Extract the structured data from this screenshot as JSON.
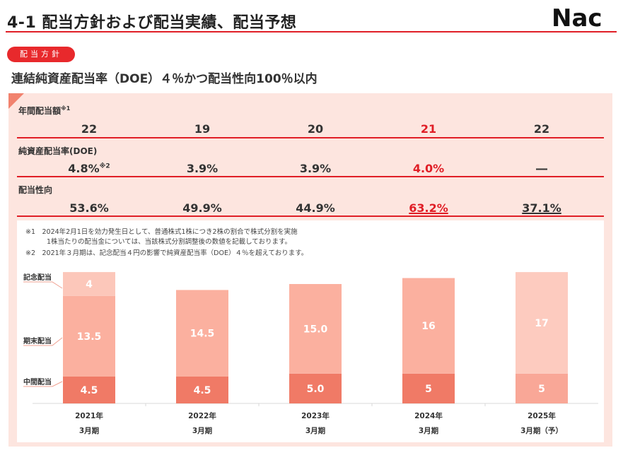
{
  "header": {
    "title": "4-1 配当方針および配当実績、配当予想",
    "logo_text": "Nac",
    "tag": "配当方針",
    "subtitle": "連結純資産配当率（DOE）４％かつ配当性向100％以内"
  },
  "table": {
    "annual_dividend": {
      "label": "年間配当額",
      "label_note": "※1",
      "values": [
        "22",
        "19",
        "20",
        "21",
        "22"
      ]
    },
    "doe": {
      "label": "純資産配当率(DOE)",
      "values": [
        "4.8%",
        "3.9%",
        "3.9%",
        "4.0%",
        "―"
      ],
      "first_note": "※2"
    },
    "payout": {
      "label": "配当性向",
      "values": [
        "53.6%",
        "49.9%",
        "44.9%",
        "63.2%",
        "37.1%"
      ]
    }
  },
  "notes": [
    "※1　2024年2月1日を効力発生日として、普通株式1株につき2株の割合で株式分割を実施",
    "1株当たりの配当金については、当該株式分割調整後の数値を記載しております。",
    "※2　2021年３月期は、記念配当４円の影響で純資産配当率（DOE）４％を超えております。"
  ],
  "legend_labels": {
    "commemorative": "記念配当",
    "year_end": "期末配当",
    "interim": "中間配当"
  },
  "colors": {
    "accent_red": "#e01e26",
    "interim": "#f07a66",
    "year_end": "#fbb09f",
    "commemorative": "#fcc7ba",
    "forecast_interim": "#f9a797",
    "forecast_year_end": "#fdcbbf",
    "panel": "#fde5df"
  },
  "chart_data": {
    "type": "bar",
    "stacked": true,
    "categories": [
      "2021年 3月期",
      "2022年 3月期",
      "2023年 3月期",
      "2024年 3月期",
      "2025年 3月期（予）"
    ],
    "category_lines": [
      [
        "2021年",
        "3月期"
      ],
      [
        "2022年",
        "3月期"
      ],
      [
        "2023年",
        "3月期"
      ],
      [
        "2024年",
        "3月期"
      ],
      [
        "2025年",
        "3月期（予）"
      ]
    ],
    "series": [
      {
        "name": "中間配当",
        "values": [
          4.5,
          4.5,
          5.0,
          5,
          5
        ],
        "labels": [
          "4.5",
          "4.5",
          "5.0",
          "5",
          "5"
        ]
      },
      {
        "name": "期末配当",
        "values": [
          13.5,
          14.5,
          15.0,
          16,
          17
        ],
        "labels": [
          "13.5",
          "14.5",
          "15.0",
          "16",
          "17"
        ]
      },
      {
        "name": "記念配当",
        "values": [
          4,
          0,
          0,
          0,
          0
        ],
        "labels": [
          "4",
          "",
          "",
          "",
          ""
        ]
      }
    ],
    "forecast_index": 4,
    "ylim": [
      0,
      22
    ]
  }
}
